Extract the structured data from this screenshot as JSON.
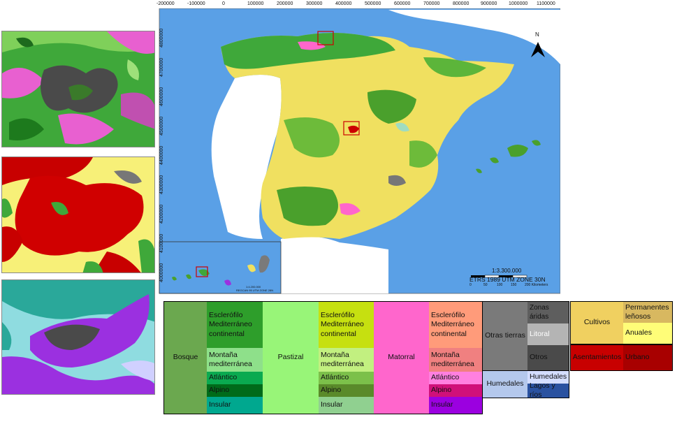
{
  "map": {
    "x_ticks": [
      "-200000",
      "-100000",
      "0",
      "100000",
      "200000",
      "300000",
      "400000",
      "500000",
      "600000",
      "700000",
      "800000",
      "900000",
      "1000000",
      "1100000"
    ],
    "y_ticks": [
      "4800000",
      "4700000",
      "4600000",
      "4500000",
      "4400000",
      "4300000",
      "4200000",
      "4100000",
      "4000000"
    ],
    "north_label": "N",
    "scale_text": "1:3.300.000",
    "projection_text": "ETRS 1989 UTM ZONE 30N",
    "scalebar_labels": [
      "0",
      "50",
      "100",
      "150",
      "200 Kilometers"
    ],
    "canary_scale": "1:4.200.000",
    "canary_projection": "REGCAN 95 UTM ZONE 28N",
    "colors": {
      "sea": "#5aa0e6",
      "land_white": "#ffffff",
      "cultivos": "#f0e060",
      "bosque": "#4aa02c",
      "matorral": "#ff66cc",
      "urbano": "#cc0000",
      "otras_tierras": "#777777"
    }
  },
  "legend": {
    "bosque": {
      "label": "Bosque",
      "esclerofilo": "Esclerófilo",
      "med_continental": "Mediterráneo continental",
      "montana_med": "Montaña mediterránea",
      "atlantico": "Atlántico",
      "alpino": "Alpino",
      "insular": "Insular"
    },
    "pastizal": {
      "label": "Pastizal",
      "esclerofilo": "Esclerófilo",
      "med_continental": "Mediterráneo continental",
      "montana_med": "Montaña mediterránea",
      "atlantico": "Atlántico",
      "alpino": "Alpino",
      "insular": "Insular"
    },
    "matorral": {
      "label": "Matorral",
      "esclerofilo": "Esclerófilo",
      "med_continental": "Mediterráneo continental",
      "montana_med": "Montaña mediterránea",
      "atlantico": "Atlántico",
      "alpino": "Alpino",
      "insular": "Insular"
    },
    "otras_tierras": {
      "label": "Otras tierras",
      "zonas_aridas": "Zonas áridas",
      "litoral": "Litoral",
      "otros": "Otros"
    },
    "humedales": {
      "label": "Humedales",
      "humedales": "Humedales",
      "lagos": "Lagos y ríos"
    },
    "cultivos": {
      "label": "Cultivos",
      "permanentes": "Permanentes leñosos",
      "anuales": "Anuales"
    },
    "asentamientos": {
      "label": "Asentamientos",
      "urbano": "Urbano"
    }
  }
}
